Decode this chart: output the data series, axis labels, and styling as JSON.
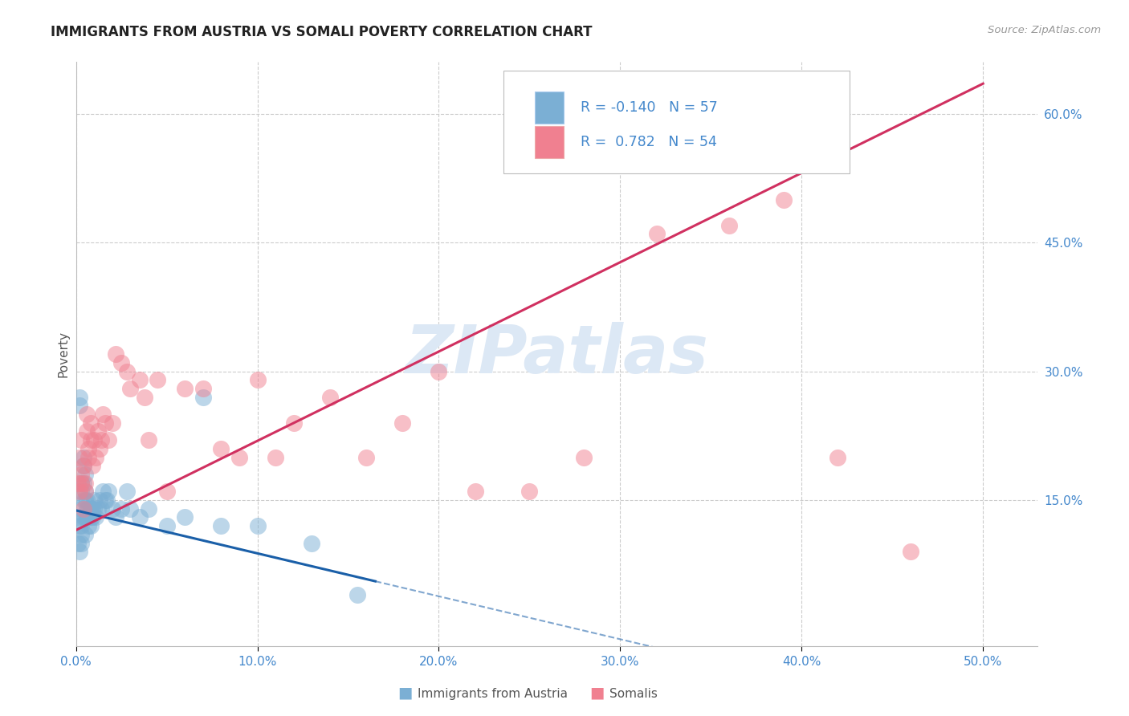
{
  "title": "IMMIGRANTS FROM AUSTRIA VS SOMALI POVERTY CORRELATION CHART",
  "source": "Source: ZipAtlas.com",
  "ylabel": "Poverty",
  "x_tick_vals": [
    0.0,
    0.1,
    0.2,
    0.3,
    0.4,
    0.5
  ],
  "y_tick_vals_right": [
    0.15,
    0.3,
    0.45,
    0.6
  ],
  "xlim": [
    0.0,
    0.53
  ],
  "ylim": [
    -0.02,
    0.66
  ],
  "austria_color": "#7bafd4",
  "somali_color": "#f08090",
  "austria_line_color": "#1a5fa8",
  "somali_line_color": "#d03060",
  "austria_R": -0.14,
  "austria_N": 57,
  "somali_R": 0.782,
  "somali_N": 54,
  "watermark": "ZIPatlas",
  "watermark_color": "#dce8f5",
  "background_color": "#ffffff",
  "grid_color": "#cccccc",
  "title_color": "#222222",
  "axis_label_color": "#555555",
  "tick_color": "#4488cc",
  "austria_scatter_x": [
    0.001,
    0.001,
    0.002,
    0.002,
    0.002,
    0.002,
    0.003,
    0.003,
    0.003,
    0.003,
    0.003,
    0.003,
    0.004,
    0.004,
    0.004,
    0.004,
    0.004,
    0.005,
    0.005,
    0.005,
    0.005,
    0.005,
    0.006,
    0.006,
    0.006,
    0.007,
    0.007,
    0.007,
    0.008,
    0.008,
    0.008,
    0.009,
    0.009,
    0.01,
    0.01,
    0.011,
    0.012,
    0.013,
    0.014,
    0.015,
    0.016,
    0.017,
    0.018,
    0.02,
    0.022,
    0.025,
    0.028,
    0.03,
    0.035,
    0.04,
    0.05,
    0.06,
    0.07,
    0.08,
    0.1,
    0.13,
    0.155
  ],
  "austria_scatter_y": [
    0.1,
    0.13,
    0.27,
    0.26,
    0.12,
    0.09,
    0.17,
    0.16,
    0.14,
    0.12,
    0.11,
    0.1,
    0.2,
    0.19,
    0.17,
    0.15,
    0.13,
    0.18,
    0.16,
    0.15,
    0.13,
    0.11,
    0.15,
    0.14,
    0.13,
    0.14,
    0.13,
    0.12,
    0.14,
    0.13,
    0.12,
    0.14,
    0.13,
    0.15,
    0.14,
    0.13,
    0.14,
    0.15,
    0.14,
    0.16,
    0.15,
    0.15,
    0.16,
    0.14,
    0.13,
    0.14,
    0.16,
    0.14,
    0.13,
    0.14,
    0.12,
    0.13,
    0.27,
    0.12,
    0.12,
    0.1,
    0.04
  ],
  "somali_scatter_x": [
    0.001,
    0.002,
    0.002,
    0.003,
    0.003,
    0.003,
    0.004,
    0.004,
    0.005,
    0.005,
    0.006,
    0.006,
    0.007,
    0.007,
    0.008,
    0.008,
    0.009,
    0.01,
    0.011,
    0.012,
    0.013,
    0.014,
    0.015,
    0.016,
    0.018,
    0.02,
    0.022,
    0.025,
    0.028,
    0.03,
    0.035,
    0.038,
    0.04,
    0.045,
    0.05,
    0.06,
    0.07,
    0.08,
    0.09,
    0.1,
    0.11,
    0.12,
    0.14,
    0.16,
    0.18,
    0.2,
    0.22,
    0.25,
    0.28,
    0.32,
    0.36,
    0.39,
    0.42,
    0.46
  ],
  "somali_scatter_y": [
    0.17,
    0.16,
    0.2,
    0.18,
    0.17,
    0.22,
    0.14,
    0.19,
    0.17,
    0.16,
    0.25,
    0.23,
    0.21,
    0.2,
    0.24,
    0.22,
    0.19,
    0.22,
    0.2,
    0.23,
    0.21,
    0.22,
    0.25,
    0.24,
    0.22,
    0.24,
    0.32,
    0.31,
    0.3,
    0.28,
    0.29,
    0.27,
    0.22,
    0.29,
    0.16,
    0.28,
    0.28,
    0.21,
    0.2,
    0.29,
    0.2,
    0.24,
    0.27,
    0.2,
    0.24,
    0.3,
    0.16,
    0.16,
    0.2,
    0.46,
    0.47,
    0.5,
    0.2,
    0.09
  ],
  "austria_line_x0": 0.0,
  "austria_line_x1": 0.165,
  "austria_line_x_dash_end": 0.5,
  "austria_line_y0": 0.138,
  "austria_line_slope": -0.5,
  "somali_line_x0": 0.0,
  "somali_line_x1": 0.5,
  "somali_line_y0": 0.115,
  "somali_line_slope": 1.04
}
